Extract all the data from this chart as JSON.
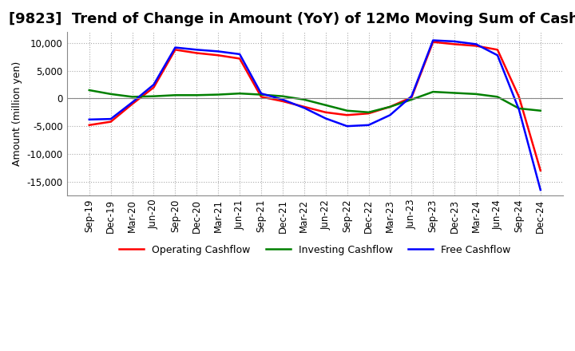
{
  "title": "[9823]  Trend of Change in Amount (YoY) of 12Mo Moving Sum of Cashflows",
  "ylabel": "Amount (million yen)",
  "ylim": [
    -17500,
    12000
  ],
  "yticks": [
    -15000,
    -10000,
    -5000,
    0,
    5000,
    10000
  ],
  "x_labels": [
    "Sep-19",
    "Dec-19",
    "Mar-20",
    "Jun-20",
    "Sep-20",
    "Dec-20",
    "Mar-21",
    "Jun-21",
    "Sep-21",
    "Dec-21",
    "Mar-22",
    "Jun-22",
    "Sep-22",
    "Dec-22",
    "Mar-23",
    "Jun-23",
    "Sep-23",
    "Dec-23",
    "Mar-24",
    "Jun-24",
    "Sep-24",
    "Dec-24"
  ],
  "operating": [
    -4800,
    -4200,
    -1000,
    2000,
    8800,
    8200,
    7800,
    7200,
    300,
    -500,
    -1500,
    -2500,
    -3000,
    -2700,
    -1500,
    200,
    10200,
    9800,
    9500,
    8800,
    300,
    -13000
  ],
  "investing": [
    1500,
    800,
    300,
    400,
    600,
    600,
    700,
    900,
    700,
    400,
    -200,
    -1200,
    -2200,
    -2500,
    -1500,
    -200,
    1200,
    1000,
    800,
    300,
    -1800,
    -2200
  ],
  "free": [
    -3800,
    -3700,
    -700,
    2500,
    9200,
    8800,
    8500,
    8000,
    900,
    -200,
    -1700,
    -3600,
    -5000,
    -4800,
    -3000,
    400,
    10500,
    10300,
    9800,
    7800,
    -2000,
    -16500
  ],
  "operating_color": "#ff0000",
  "investing_color": "#008000",
  "free_color": "#0000ff",
  "background_color": "#ffffff",
  "grid_color": "#aaaaaa",
  "title_fontsize": 13,
  "label_fontsize": 9,
  "tick_fontsize": 8.5
}
